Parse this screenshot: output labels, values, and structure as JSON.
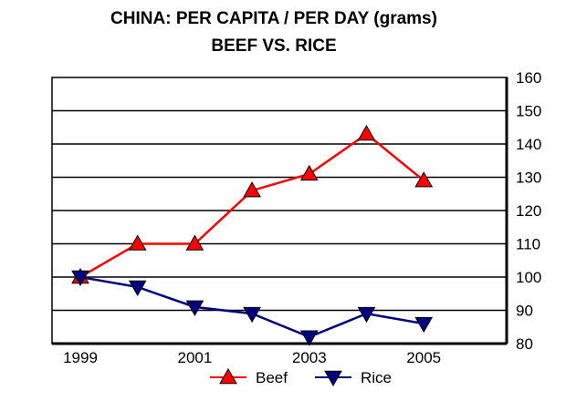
{
  "chart_data": {
    "type": "line",
    "title": "CHINA: PER CAPITA / PER DAY (grams)",
    "subtitle": "BEEF VS. RICE",
    "xlabel": "",
    "ylabel": "",
    "x": [
      1999,
      2000,
      2001,
      2002,
      2003,
      2004,
      2005
    ],
    "x_tick_labels": [
      "1999",
      "2001",
      "2003",
      "2005"
    ],
    "y_tick_labels": [
      "80",
      "90",
      "100",
      "110",
      "120",
      "130",
      "140",
      "150",
      "160"
    ],
    "ylim": [
      80,
      160
    ],
    "y_axis_side": "right",
    "grid": true,
    "legend_position": "bottom",
    "series": [
      {
        "name": "Beef",
        "color": "#ff0000",
        "marker": "triangle-up",
        "values": [
          100,
          110,
          110,
          126,
          131,
          143,
          129
        ]
      },
      {
        "name": "Rice",
        "color": "#000080",
        "marker": "triangle-down",
        "values": [
          100,
          97,
          91,
          89,
          82,
          89,
          86
        ]
      }
    ]
  }
}
